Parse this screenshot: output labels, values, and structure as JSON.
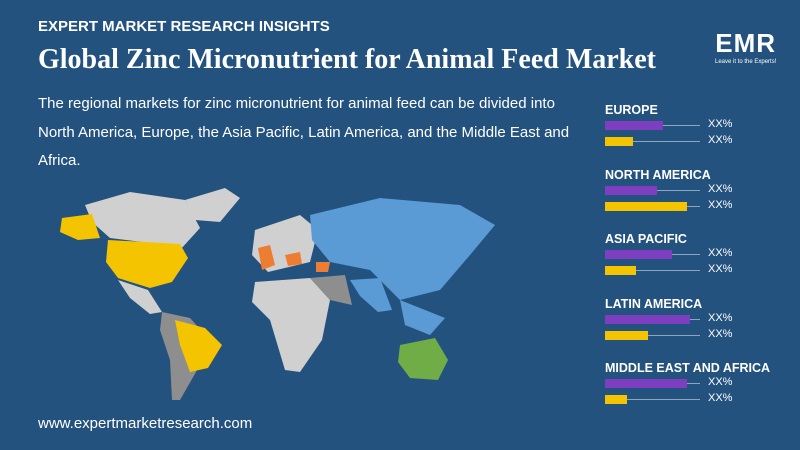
{
  "header": {
    "eyebrow": "EXPERT MARKET RESEARCH INSIGHTS",
    "title": "Global Zinc Micronutrient for Animal Feed Market",
    "description": "The regional markets for zinc micronutrient for animal feed can be divided into North America, Europe, the Asia Pacific, Latin America, and the Middle East and Africa."
  },
  "logo": {
    "name": "EMR",
    "tagline": "Leave it to the Experts!"
  },
  "regions": [
    {
      "name": "EUROPE",
      "labels": [
        "XX%",
        "XX%"
      ]
    },
    {
      "name": "NORTH AMERICA",
      "labels": [
        "XX%",
        "XX%"
      ]
    },
    {
      "name": "ASIA PACIFIC",
      "labels": [
        "XX%",
        "XX%"
      ]
    },
    {
      "name": "LATIN AMERICA",
      "labels": [
        "XX%",
        "XX%"
      ]
    },
    {
      "name": "MIDDLE EAST AND AFRICA",
      "labels": [
        "XX%",
        "XX%"
      ]
    }
  ],
  "footer": {
    "url": "www.expertmarketresearch.com"
  }
}
